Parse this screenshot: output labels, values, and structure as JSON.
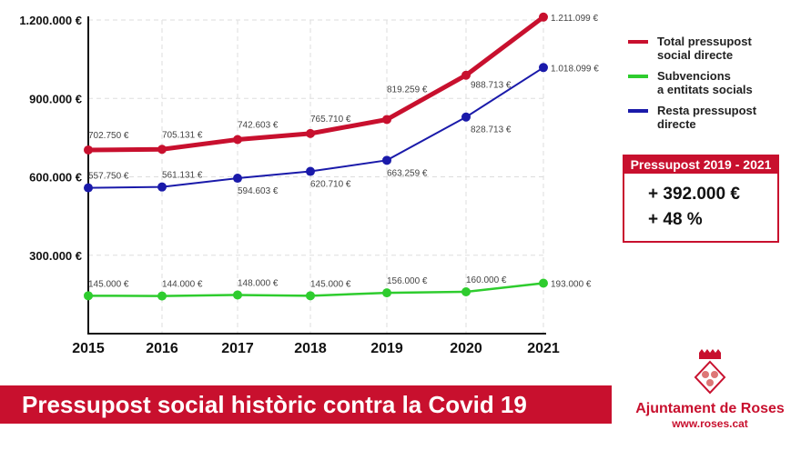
{
  "chart_data": {
    "type": "line",
    "categories": [
      "2015",
      "2016",
      "2017",
      "2018",
      "2019",
      "2020",
      "2021"
    ],
    "ylim": [
      0,
      1200000
    ],
    "yticks": [
      300000,
      600000,
      900000,
      1200000
    ],
    "ytick_labels": [
      "300.000 €",
      "600.000 €",
      "900.000 €",
      "1.200.000 €"
    ],
    "grid": true,
    "legend_placement": "right",
    "series": [
      {
        "name": "Total pressupost social directe",
        "color": "#c8102e",
        "values": [
          702750,
          705131,
          742603,
          765710,
          819259,
          988713,
          1211099
        ],
        "labels": [
          "702.750 €",
          "705.131 €",
          "742.603 €",
          "765.710 €",
          "819.259 €",
          "988.713 €",
          "1.211.099 €"
        ]
      },
      {
        "name": "Subvencions a entitats socials",
        "color": "#2ecc2e",
        "values": [
          145000,
          144000,
          148000,
          145000,
          156000,
          160000,
          193000
        ],
        "labels": [
          "145.000 €",
          "144.000 €",
          "148.000 €",
          "145.000 €",
          "156.000 €",
          "160.000 €",
          "193.000 €"
        ]
      },
      {
        "name": "Resta pressupost directe",
        "color": "#1a1aaa",
        "values": [
          557750,
          561131,
          594603,
          620710,
          663259,
          828713,
          1018099
        ],
        "labels": [
          "557.750 €",
          "561.131 €",
          "594.603 €",
          "620.710 €",
          "663.259 €",
          "828.713 €",
          "1.018.099 €"
        ]
      }
    ]
  },
  "legend": [
    {
      "line1": "Total pressupost",
      "line2": "social directe"
    },
    {
      "line1": "Subvencions",
      "line2": "a entitats socials"
    },
    {
      "line1": "Resta pressupost",
      "line2": "directe"
    }
  ],
  "summary": {
    "title": "Pressupost 2019 - 2021",
    "amount": "+ 392.000 €",
    "percent": "+ 48 %"
  },
  "banner": "Pressupost social històric contra la Covid 19",
  "logo": {
    "name": "Ajuntament de Roses",
    "url": "www.roses.cat"
  }
}
